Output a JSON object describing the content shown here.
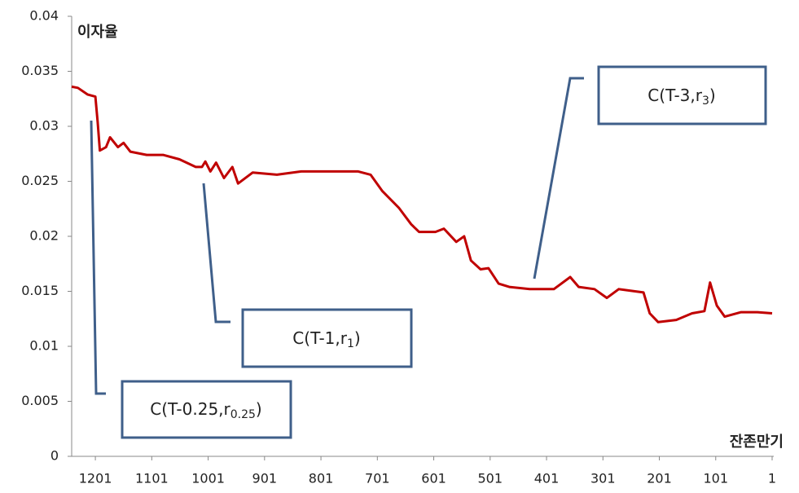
{
  "chart_data": {
    "type": "line",
    "y_label": "이자율",
    "x_label": "잔존만기",
    "xlim": [
      1243,
      0
    ],
    "ylim": [
      0,
      0.04
    ],
    "xticks": [
      1201,
      1101,
      1001,
      901,
      801,
      701,
      601,
      501,
      401,
      301,
      201,
      101,
      1
    ],
    "yticks": [
      0,
      0.005,
      0.01,
      0.015,
      0.02,
      0.025,
      0.03,
      0.035,
      0.04
    ],
    "color": "#c00000",
    "x": [
      1243,
      1232,
      1215,
      1201,
      1197,
      1193,
      1182,
      1175,
      1161,
      1151,
      1139,
      1110,
      1081,
      1052,
      1023,
      1012,
      1006,
      997,
      987,
      973,
      958,
      948,
      922,
      879,
      836,
      792,
      735,
      713,
      692,
      663,
      641,
      627,
      598,
      583,
      561,
      547,
      535,
      518,
      504,
      486,
      467,
      431,
      388,
      359,
      344,
      316,
      294,
      273,
      244,
      229,
      218,
      203,
      171,
      143,
      121,
      111,
      99,
      85,
      56,
      27,
      1
    ],
    "values": [
      0.0336,
      0.0335,
      0.0329,
      0.0327,
      0.0304,
      0.0278,
      0.0281,
      0.029,
      0.0281,
      0.0285,
      0.0277,
      0.0274,
      0.0274,
      0.027,
      0.0263,
      0.0263,
      0.0268,
      0.0259,
      0.0267,
      0.0253,
      0.0263,
      0.0248,
      0.0258,
      0.0256,
      0.0259,
      0.0259,
      0.0259,
      0.0256,
      0.0241,
      0.0226,
      0.0211,
      0.0204,
      0.0204,
      0.0207,
      0.0195,
      0.02,
      0.0178,
      0.017,
      0.0171,
      0.0157,
      0.0154,
      0.0152,
      0.0152,
      0.0163,
      0.0154,
      0.0152,
      0.0144,
      0.0152,
      0.015,
      0.0149,
      0.013,
      0.0122,
      0.0124,
      0.013,
      0.0132,
      0.0158,
      0.0137,
      0.0127,
      0.0131,
      0.0131,
      0.013
    ],
    "annotations": [
      {
        "text": "C(T-0.25,r",
        "subscript": "0.25",
        "suffix": ")"
      },
      {
        "text": "C(T-1,r",
        "subscript": "1",
        "suffix": ")"
      },
      {
        "text": "C(T-3,r",
        "subscript": "3",
        "suffix": ")"
      }
    ]
  }
}
